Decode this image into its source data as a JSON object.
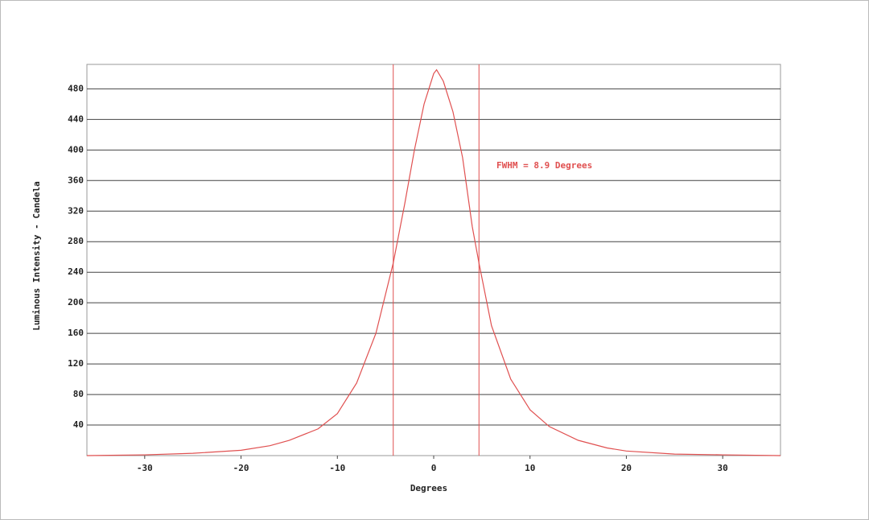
{
  "chart_data": {
    "type": "line",
    "xlabel": "Degrees",
    "ylabel": "Luminous Intensity - Candela",
    "annotation": "FWHM =  8.9 Degrees",
    "x": [
      -36,
      -30,
      -25,
      -20,
      -17,
      -15,
      -12,
      -10,
      -8,
      -6,
      -4.2,
      -3,
      -2,
      -1,
      0,
      0.3,
      1,
      2,
      3,
      4,
      4.7,
      6,
      8,
      10,
      12,
      15,
      18,
      20,
      25,
      30,
      36
    ],
    "series": [
      {
        "name": "Luminous Intensity",
        "color": "#e05050",
        "values": [
          0,
          1,
          3,
          7,
          13,
          20,
          35,
          55,
          95,
          160,
          252,
          330,
          400,
          460,
          500,
          505,
          490,
          450,
          390,
          300,
          252,
          170,
          100,
          60,
          38,
          20,
          10,
          6,
          2,
          1,
          0
        ]
      }
    ],
    "vlines": [
      -4.2,
      4.7
    ],
    "xlim": [
      -36,
      36
    ],
    "xticks": [
      -30,
      -20,
      -10,
      0,
      10,
      20,
      30
    ],
    "ylim": [
      0,
      512
    ],
    "yticks": [
      40,
      80,
      120,
      160,
      200,
      240,
      280,
      320,
      360,
      400,
      440,
      480
    ],
    "grid": true
  }
}
